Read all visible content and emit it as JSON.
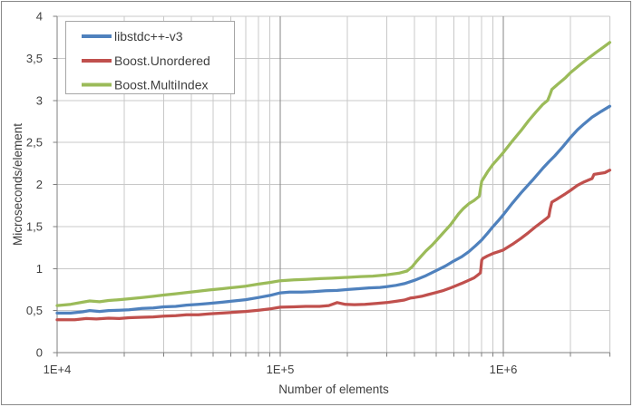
{
  "chart": {
    "title": "",
    "style": {
      "background": "#FFFFFF",
      "frame_border": "#898989",
      "plot_border": "#C8C8C8",
      "grid_minor": "#C8C8C8",
      "grid_major": "#858585",
      "axis_line": "#7F7F7F",
      "text_color": "#3F3F3F",
      "legend_border": "#A6A6A6",
      "legend_background": "#FFFFFF"
    },
    "x_axis": {
      "title": "Number of elements",
      "scale": "log",
      "ticks": [
        {
          "label": "1E+4",
          "value": 10000
        },
        {
          "label": "1E+5",
          "value": 100000
        },
        {
          "label": "1E+6",
          "value": 1000000
        }
      ]
    },
    "y_axis": {
      "title": "Microseconds/element",
      "min": 0,
      "max": 4,
      "step": 0.5,
      "tick_labels": [
        "0",
        "0,5",
        "1",
        "1,5",
        "2",
        "2,5",
        "3",
        "3,5",
        "4"
      ]
    },
    "legend": {
      "position": "top-left",
      "entries": [
        "libstdc++-v3",
        "Boost.Unordered",
        "Boost.MultiIndex"
      ]
    }
  },
  "chart_data": {
    "type": "line",
    "title": "",
    "xlabel": "Number of elements",
    "ylabel": "Microseconds/element",
    "x_scale": "log10",
    "xlim": [
      10000,
      3000000
    ],
    "ylim": [
      0,
      4
    ],
    "y_gridline_step": 0.5,
    "legend_position": "top-left",
    "grid": true,
    "series": [
      {
        "name": "libstdc++-v3",
        "color": "#4F81BD",
        "points": [
          [
            10000,
            0.47
          ],
          [
            11500,
            0.47
          ],
          [
            13000,
            0.485
          ],
          [
            14000,
            0.5
          ],
          [
            15500,
            0.49
          ],
          [
            17000,
            0.5
          ],
          [
            19000,
            0.505
          ],
          [
            21000,
            0.51
          ],
          [
            24000,
            0.525
          ],
          [
            27000,
            0.53
          ],
          [
            30000,
            0.545
          ],
          [
            34000,
            0.55
          ],
          [
            38000,
            0.565
          ],
          [
            43000,
            0.575
          ],
          [
            48000,
            0.585
          ],
          [
            55000,
            0.6
          ],
          [
            62000,
            0.615
          ],
          [
            70000,
            0.63
          ],
          [
            80000,
            0.655
          ],
          [
            90000,
            0.68
          ],
          [
            100000,
            0.71
          ],
          [
            110000,
            0.72
          ],
          [
            125000,
            0.72
          ],
          [
            140000,
            0.725
          ],
          [
            160000,
            0.735
          ],
          [
            180000,
            0.74
          ],
          [
            200000,
            0.75
          ],
          [
            225000,
            0.76
          ],
          [
            250000,
            0.77
          ],
          [
            280000,
            0.775
          ],
          [
            300000,
            0.785
          ],
          [
            330000,
            0.8
          ],
          [
            360000,
            0.82
          ],
          [
            400000,
            0.86
          ],
          [
            450000,
            0.915
          ],
          [
            500000,
            0.975
          ],
          [
            550000,
            1.03
          ],
          [
            600000,
            1.09
          ],
          [
            650000,
            1.14
          ],
          [
            700000,
            1.2
          ],
          [
            750000,
            1.27
          ],
          [
            800000,
            1.34
          ],
          [
            850000,
            1.42
          ],
          [
            900000,
            1.5
          ],
          [
            950000,
            1.57
          ],
          [
            1000000,
            1.64
          ],
          [
            1100000,
            1.78
          ],
          [
            1200000,
            1.9
          ],
          [
            1350000,
            2.05
          ],
          [
            1500000,
            2.19
          ],
          [
            1600000,
            2.27
          ],
          [
            1700000,
            2.34
          ],
          [
            1850000,
            2.45
          ],
          [
            2000000,
            2.56
          ],
          [
            2150000,
            2.65
          ],
          [
            2300000,
            2.72
          ],
          [
            2500000,
            2.8
          ],
          [
            2750000,
            2.87
          ],
          [
            3000000,
            2.93
          ]
        ]
      },
      {
        "name": "Boost.Unordered",
        "color": "#C0504D",
        "points": [
          [
            10000,
            0.39
          ],
          [
            12000,
            0.39
          ],
          [
            13500,
            0.405
          ],
          [
            15000,
            0.4
          ],
          [
            17000,
            0.41
          ],
          [
            19000,
            0.405
          ],
          [
            21000,
            0.415
          ],
          [
            24000,
            0.42
          ],
          [
            27000,
            0.425
          ],
          [
            30000,
            0.435
          ],
          [
            34000,
            0.44
          ],
          [
            38000,
            0.45
          ],
          [
            43000,
            0.45
          ],
          [
            48000,
            0.46
          ],
          [
            55000,
            0.47
          ],
          [
            62000,
            0.48
          ],
          [
            70000,
            0.49
          ],
          [
            80000,
            0.505
          ],
          [
            90000,
            0.52
          ],
          [
            100000,
            0.54
          ],
          [
            115000,
            0.545
          ],
          [
            130000,
            0.55
          ],
          [
            150000,
            0.55
          ],
          [
            165000,
            0.56
          ],
          [
            180000,
            0.595
          ],
          [
            195000,
            0.575
          ],
          [
            215000,
            0.57
          ],
          [
            240000,
            0.575
          ],
          [
            270000,
            0.585
          ],
          [
            300000,
            0.595
          ],
          [
            330000,
            0.61
          ],
          [
            360000,
            0.625
          ],
          [
            385000,
            0.65
          ],
          [
            400000,
            0.655
          ],
          [
            430000,
            0.67
          ],
          [
            460000,
            0.69
          ],
          [
            500000,
            0.715
          ],
          [
            540000,
            0.74
          ],
          [
            580000,
            0.77
          ],
          [
            620000,
            0.8
          ],
          [
            660000,
            0.83
          ],
          [
            700000,
            0.86
          ],
          [
            740000,
            0.89
          ],
          [
            775000,
            0.93
          ],
          [
            790000,
            0.95
          ],
          [
            800000,
            1.1
          ],
          [
            810000,
            1.12
          ],
          [
            850000,
            1.15
          ],
          [
            900000,
            1.18
          ],
          [
            950000,
            1.2
          ],
          [
            1000000,
            1.22
          ],
          [
            1100000,
            1.29
          ],
          [
            1200000,
            1.36
          ],
          [
            1300000,
            1.43
          ],
          [
            1400000,
            1.5
          ],
          [
            1500000,
            1.56
          ],
          [
            1570000,
            1.6
          ],
          [
            1600000,
            1.62
          ],
          [
            1620000,
            1.7
          ],
          [
            1650000,
            1.79
          ],
          [
            1750000,
            1.83
          ],
          [
            1900000,
            1.89
          ],
          [
            2000000,
            1.93
          ],
          [
            2150000,
            1.99
          ],
          [
            2300000,
            2.03
          ],
          [
            2450000,
            2.06
          ],
          [
            2500000,
            2.07
          ],
          [
            2550000,
            2.12
          ],
          [
            2700000,
            2.13
          ],
          [
            2850000,
            2.14
          ],
          [
            3000000,
            2.17
          ]
        ]
      },
      {
        "name": "Boost.MultiIndex",
        "color": "#9BBB59",
        "points": [
          [
            10000,
            0.56
          ],
          [
            11500,
            0.575
          ],
          [
            13000,
            0.6
          ],
          [
            14000,
            0.615
          ],
          [
            15500,
            0.605
          ],
          [
            17000,
            0.62
          ],
          [
            19000,
            0.63
          ],
          [
            21000,
            0.64
          ],
          [
            24000,
            0.655
          ],
          [
            27000,
            0.67
          ],
          [
            30000,
            0.685
          ],
          [
            34000,
            0.7
          ],
          [
            38000,
            0.715
          ],
          [
            43000,
            0.73
          ],
          [
            48000,
            0.745
          ],
          [
            55000,
            0.76
          ],
          [
            62000,
            0.775
          ],
          [
            70000,
            0.79
          ],
          [
            80000,
            0.815
          ],
          [
            90000,
            0.835
          ],
          [
            100000,
            0.855
          ],
          [
            115000,
            0.865
          ],
          [
            130000,
            0.87
          ],
          [
            150000,
            0.88
          ],
          [
            170000,
            0.885
          ],
          [
            200000,
            0.895
          ],
          [
            230000,
            0.905
          ],
          [
            260000,
            0.91
          ],
          [
            300000,
            0.925
          ],
          [
            340000,
            0.945
          ],
          [
            370000,
            0.97
          ],
          [
            390000,
            1.02
          ],
          [
            410000,
            1.09
          ],
          [
            450000,
            1.21
          ],
          [
            480000,
            1.28
          ],
          [
            500000,
            1.33
          ],
          [
            540000,
            1.43
          ],
          [
            580000,
            1.52
          ],
          [
            630000,
            1.65
          ],
          [
            660000,
            1.71
          ],
          [
            700000,
            1.77
          ],
          [
            740000,
            1.81
          ],
          [
            780000,
            1.86
          ],
          [
            800000,
            2.04
          ],
          [
            810000,
            2.06
          ],
          [
            850000,
            2.15
          ],
          [
            900000,
            2.24
          ],
          [
            950000,
            2.31
          ],
          [
            1000000,
            2.38
          ],
          [
            1100000,
            2.52
          ],
          [
            1200000,
            2.64
          ],
          [
            1300000,
            2.76
          ],
          [
            1400000,
            2.86
          ],
          [
            1500000,
            2.95
          ],
          [
            1580000,
            3.0
          ],
          [
            1620000,
            3.07
          ],
          [
            1650000,
            3.13
          ],
          [
            1750000,
            3.19
          ],
          [
            1900000,
            3.27
          ],
          [
            2000000,
            3.33
          ],
          [
            2200000,
            3.42
          ],
          [
            2400000,
            3.5
          ],
          [
            2600000,
            3.57
          ],
          [
            2800000,
            3.63
          ],
          [
            3000000,
            3.69
          ]
        ]
      }
    ]
  }
}
